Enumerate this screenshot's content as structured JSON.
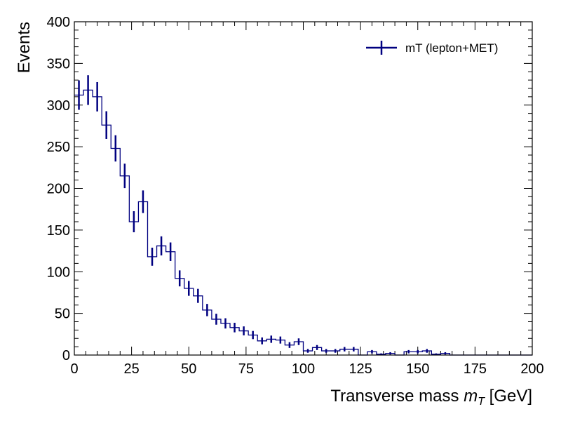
{
  "chart_data": {
    "type": "histogram",
    "xlabel_main": "Transverse mass ",
    "xlabel_var": "m",
    "xlabel_sub": "T",
    "xlabel_unit": " [GeV]",
    "ylabel": "Events",
    "xlim": [
      0,
      200
    ],
    "ylim": [
      0,
      400
    ],
    "xticks": [
      0,
      25,
      50,
      75,
      100,
      125,
      150,
      175,
      200
    ],
    "yticks": [
      0,
      50,
      100,
      150,
      200,
      250,
      300,
      350,
      400
    ],
    "grid": false,
    "legend_position": "top-right",
    "series": [
      {
        "name": "mT (lepton+MET)",
        "color": "#000080",
        "bin_width": 4,
        "bin_edges_start": 0,
        "values": [
          312,
          318,
          310,
          276,
          248,
          215,
          160,
          184,
          118,
          131,
          124,
          92,
          80,
          71,
          54,
          43,
          38,
          33,
          29,
          24,
          17,
          19,
          18,
          12,
          16,
          5,
          9,
          5,
          5,
          7,
          7,
          0,
          4,
          1,
          2,
          0,
          4,
          4,
          5,
          1,
          2,
          0,
          0,
          0,
          0,
          0,
          0,
          0,
          0,
          0
        ]
      }
    ]
  }
}
